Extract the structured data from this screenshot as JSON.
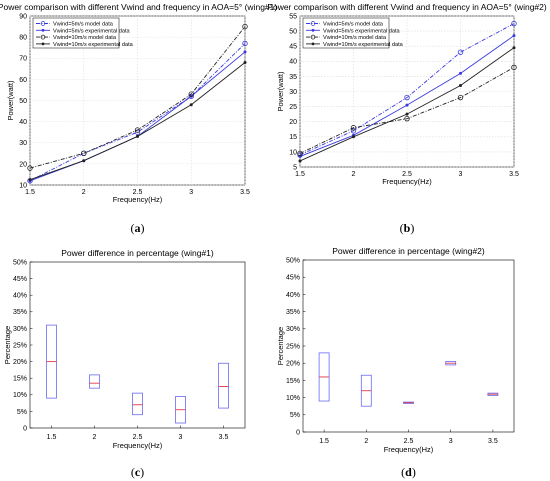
{
  "chart_data": [
    {
      "id": "a",
      "type": "line",
      "title": "Power comparison with different Vwind and frequency in AOA=5° (wing#1)",
      "xlabel": "Frequency(Hz)",
      "ylabel": "Power(watt)",
      "xlim": [
        1.5,
        3.5
      ],
      "ylim": [
        10,
        90
      ],
      "xticks": [
        "1.5",
        "2",
        "2.5",
        "3",
        "3.5"
      ],
      "yticks": [
        "10",
        "20",
        "30",
        "40",
        "50",
        "60",
        "70",
        "80",
        "90"
      ],
      "grid": true,
      "legend_position": "top-left",
      "x": [
        1.5,
        2,
        2.5,
        3,
        3.5
      ],
      "series": [
        {
          "name": "Vwind=5m/s model data",
          "values": [
            12,
            25,
            35,
            52,
            77
          ],
          "color": "#3a3ae0",
          "style": "dashdot",
          "marker": "open-circle"
        },
        {
          "name": "Vwind=5m/s experimental data",
          "values": [
            12,
            21.5,
            33,
            52,
            73
          ],
          "color": "#3a3ae0",
          "style": "solid",
          "marker": "filled-dot"
        },
        {
          "name": "Vwind=10m/s model data",
          "values": [
            18,
            25,
            36,
            53,
            85
          ],
          "color": "#222222",
          "style": "dashdot",
          "marker": "open-circle"
        },
        {
          "name": "Vwind=10m/s experimental data",
          "values": [
            12.5,
            21.5,
            33,
            48,
            68
          ],
          "color": "#222222",
          "style": "solid",
          "marker": "filled-dot"
        }
      ],
      "subfig_label": "(a)"
    },
    {
      "id": "b",
      "type": "line",
      "title": "Power comparison with different Vwind and frequency in AOA=5° (wing#2)",
      "xlabel": "Frequency(Hz)",
      "ylabel": "Power(watt)",
      "xlim": [
        1.5,
        3.5
      ],
      "ylim": [
        5,
        55
      ],
      "xticks": [
        "1.5",
        "2",
        "2.5",
        "3",
        "3.5"
      ],
      "yticks": [
        "5",
        "10",
        "15",
        "20",
        "25",
        "30",
        "35",
        "40",
        "45",
        "50",
        "55"
      ],
      "grid": true,
      "legend_position": "top-left",
      "x": [
        1.5,
        2,
        2.5,
        3,
        3.5
      ],
      "series": [
        {
          "name": "Vwind=5m/s model data",
          "values": [
            9,
            17,
            28,
            43,
            52.5
          ],
          "color": "#3a3ae0",
          "style": "dashdot",
          "marker": "open-circle"
        },
        {
          "name": "Vwind=5m/s experimental data",
          "values": [
            8.5,
            15.5,
            25.5,
            36,
            48.5
          ],
          "color": "#3a3ae0",
          "style": "solid",
          "marker": "filled-dot"
        },
        {
          "name": "Vwind=10m/s model data",
          "values": [
            9.5,
            18,
            21,
            28,
            38
          ],
          "color": "#222222",
          "style": "dashdot",
          "marker": "open-circle"
        },
        {
          "name": "Vwind=10m/s experimental data",
          "values": [
            7,
            15,
            22.5,
            32,
            44.5
          ],
          "color": "#222222",
          "style": "solid",
          "marker": "filled-dot"
        }
      ],
      "subfig_label": "(b)"
    },
    {
      "id": "c",
      "type": "box",
      "title": "Power difference in percentage (wing#1)",
      "xlabel": "Frequency(Hz)",
      "ylabel": "Percentage",
      "ylim": [
        0,
        50
      ],
      "categories": [
        "1.5",
        "2",
        "2.5",
        "3",
        "3.5"
      ],
      "yticks": [
        "0",
        "5%",
        "10%",
        "15%",
        "20%",
        "25%",
        "30%",
        "35%",
        "40%",
        "45%",
        "50%"
      ],
      "grid": false,
      "boxes": [
        {
          "q1": 9,
          "median": 20,
          "q3": 31
        },
        {
          "q1": 12,
          "median": 13.5,
          "q3": 16
        },
        {
          "q1": 4,
          "median": 7,
          "q3": 10.5
        },
        {
          "q1": 1.5,
          "median": 5.5,
          "q3": 9.5
        },
        {
          "q1": 6,
          "median": 12.5,
          "q3": 19.5
        }
      ],
      "box_color": "#6a6af0",
      "median_color": "#e03a4a",
      "subfig_label": "(c)"
    },
    {
      "id": "d",
      "type": "box",
      "title": "Power difference in percentage (wing#2)",
      "xlabel": "Frequency(Hz)",
      "ylabel": "Percentage",
      "ylim": [
        0,
        50
      ],
      "categories": [
        "1.5",
        "2",
        "2.5",
        "3",
        "3.5"
      ],
      "yticks": [
        "0",
        "5%",
        "10%",
        "15%",
        "20%",
        "25%",
        "30%",
        "35%",
        "40%",
        "45%",
        "50%"
      ],
      "grid": false,
      "boxes": [
        {
          "q1": 9,
          "median": 16,
          "q3": 23
        },
        {
          "q1": 7.5,
          "median": 12,
          "q3": 16.5
        },
        {
          "q1": 8.3,
          "median": 8.5,
          "q3": 8.7
        },
        {
          "q1": 19.5,
          "median": 20,
          "q3": 20.5
        },
        {
          "q1": 10.6,
          "median": 11,
          "q3": 11.3
        }
      ],
      "box_color": "#6a6af0",
      "median_color": "#e03a4a",
      "subfig_label": "(d)"
    }
  ]
}
